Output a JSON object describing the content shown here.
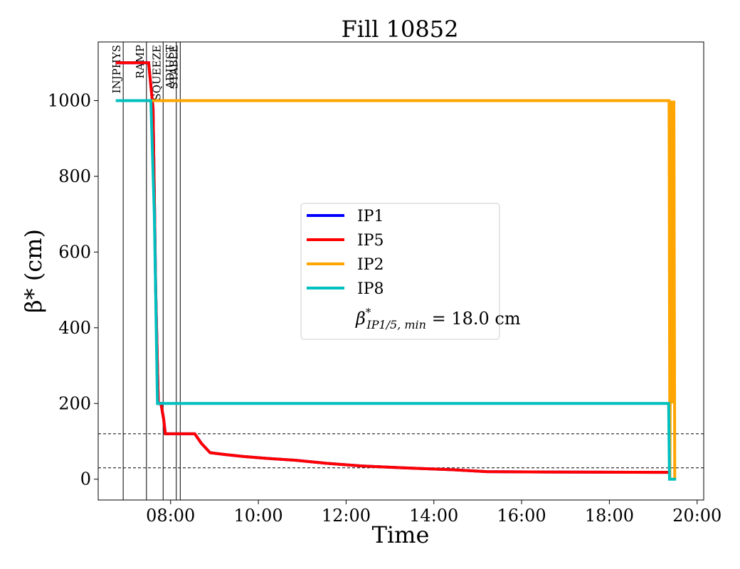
{
  "chart_data": {
    "type": "line",
    "title": "Fill 10852",
    "xlabel": "Time",
    "ylabel": "β* (cm)",
    "xlim_hours": [
      6.35,
      20.15
    ],
    "ylim": [
      -55,
      1155
    ],
    "x_ticks": [
      {
        "hour": 8,
        "label": "08:00"
      },
      {
        "hour": 10,
        "label": "10:00"
      },
      {
        "hour": 12,
        "label": "12:00"
      },
      {
        "hour": 14,
        "label": "14:00"
      },
      {
        "hour": 16,
        "label": "16:00"
      },
      {
        "hour": 18,
        "label": "18:00"
      },
      {
        "hour": 20,
        "label": "20:00"
      }
    ],
    "y_ticks": [
      {
        "value": 0,
        "label": "0"
      },
      {
        "value": 200,
        "label": "200"
      },
      {
        "value": 400,
        "label": "400"
      },
      {
        "value": 600,
        "label": "600"
      },
      {
        "value": 800,
        "label": "800"
      },
      {
        "value": 1000,
        "label": "1000"
      }
    ],
    "grid": false,
    "legend_position": "center",
    "phases": [
      {
        "label": "INJPHYS",
        "hour": 6.92
      },
      {
        "label": "RAMP",
        "hour": 7.45
      },
      {
        "label": "SQUEEZE",
        "hour": 7.83
      },
      {
        "label": "ADJUST",
        "hour": 8.13
      },
      {
        "label": "STABLE",
        "hour": 8.22
      }
    ],
    "reference_lines": [
      120,
      30
    ],
    "series": [
      {
        "name": "IP1",
        "color": "#0000ff",
        "x": [
          6.75,
          7.5,
          7.6,
          7.66,
          7.72,
          7.78,
          7.84,
          7.88,
          8.55,
          8.7,
          8.9,
          9.25,
          9.65,
          10.2,
          10.85,
          11.55,
          12.35,
          13.3,
          14.4,
          15.2,
          16.5,
          19.35
        ],
        "y": [
          1100,
          1100,
          980,
          500,
          200,
          200,
          160,
          120,
          120,
          95,
          70,
          65,
          60,
          55,
          50,
          42,
          35,
          30,
          25,
          20,
          19,
          18
        ]
      },
      {
        "name": "IP5",
        "color": "#ff0000",
        "x": [
          6.75,
          7.5,
          7.6,
          7.66,
          7.72,
          7.78,
          7.84,
          7.88,
          8.55,
          8.7,
          8.9,
          9.25,
          9.65,
          10.2,
          10.85,
          11.55,
          12.35,
          13.3,
          14.4,
          15.2,
          16.5,
          19.35
        ],
        "y": [
          1100,
          1100,
          980,
          500,
          200,
          200,
          160,
          120,
          120,
          95,
          70,
          65,
          60,
          55,
          50,
          42,
          35,
          30,
          25,
          20,
          19,
          18
        ]
      },
      {
        "name": "IP2",
        "color": "#ffa500",
        "x": [
          7.55,
          19.3,
          19.36,
          19.38,
          19.41,
          19.44,
          19.47,
          19.49
        ],
        "y": [
          1000,
          1000,
          1000,
          0,
          1000,
          200,
          1000,
          0
        ]
      },
      {
        "name": "IP8",
        "color": "#00bfbf",
        "x": [
          6.75,
          7.55,
          7.63,
          7.7,
          7.73,
          19.35,
          19.37,
          19.52
        ],
        "y": [
          1000,
          1000,
          700,
          200,
          200,
          200,
          0,
          0
        ]
      }
    ],
    "legend_note": {
      "prefix": "β",
      "sup": "*",
      "sub": "IP1/5, min",
      "text": " = 18.0 cm"
    }
  }
}
